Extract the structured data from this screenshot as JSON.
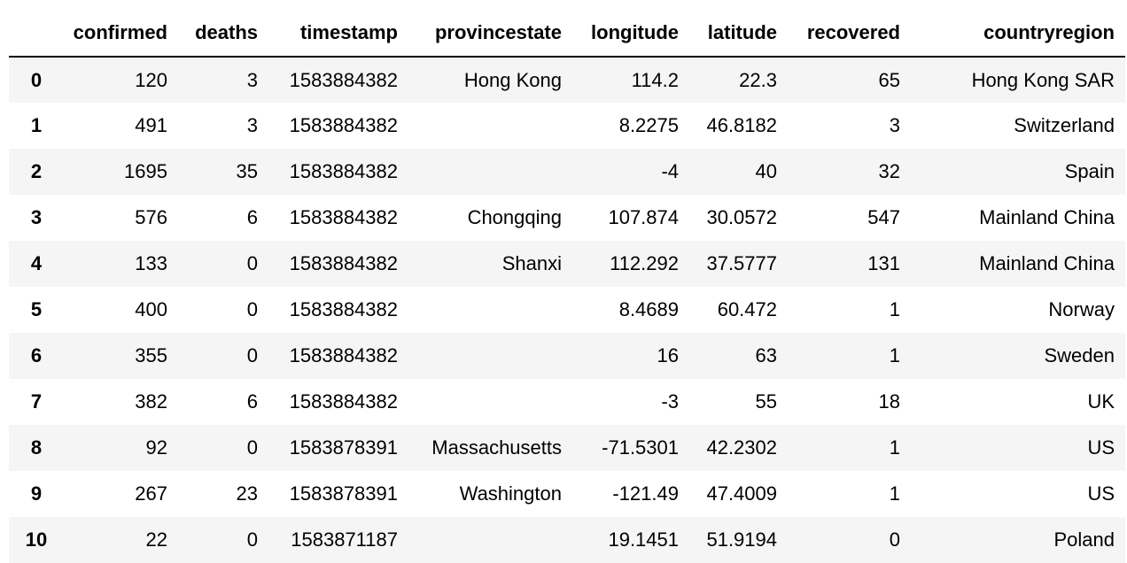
{
  "table": {
    "columns": [
      "",
      "confirmed",
      "deaths",
      "timestamp",
      "provincestate",
      "longitude",
      "latitude",
      "recovered",
      "countryregion"
    ],
    "rows": [
      {
        "index": "0",
        "cells": [
          "120",
          "3",
          "1583884382",
          "Hong Kong",
          "114.2",
          "22.3",
          "65",
          "Hong Kong SAR"
        ]
      },
      {
        "index": "1",
        "cells": [
          "491",
          "3",
          "1583884382",
          "",
          "8.2275",
          "46.8182",
          "3",
          "Switzerland"
        ]
      },
      {
        "index": "2",
        "cells": [
          "1695",
          "35",
          "1583884382",
          "",
          "-4",
          "40",
          "32",
          "Spain"
        ]
      },
      {
        "index": "3",
        "cells": [
          "576",
          "6",
          "1583884382",
          "Chongqing",
          "107.874",
          "30.0572",
          "547",
          "Mainland China"
        ]
      },
      {
        "index": "4",
        "cells": [
          "133",
          "0",
          "1583884382",
          "Shanxi",
          "112.292",
          "37.5777",
          "131",
          "Mainland China"
        ]
      },
      {
        "index": "5",
        "cells": [
          "400",
          "0",
          "1583884382",
          "",
          "8.4689",
          "60.472",
          "1",
          "Norway"
        ]
      },
      {
        "index": "6",
        "cells": [
          "355",
          "0",
          "1583884382",
          "",
          "16",
          "63",
          "1",
          "Sweden"
        ]
      },
      {
        "index": "7",
        "cells": [
          "382",
          "6",
          "1583884382",
          "",
          "-3",
          "55",
          "18",
          "UK"
        ]
      },
      {
        "index": "8",
        "cells": [
          "92",
          "0",
          "1583878391",
          "Massachusetts",
          "-71.5301",
          "42.2302",
          "1",
          "US"
        ]
      },
      {
        "index": "9",
        "cells": [
          "267",
          "23",
          "1583878391",
          "Washington",
          "-121.49",
          "47.4009",
          "1",
          "US"
        ]
      },
      {
        "index": "10",
        "cells": [
          "22",
          "0",
          "1583871187",
          "",
          "19.1451",
          "51.9194",
          "0",
          "Poland"
        ]
      }
    ]
  }
}
